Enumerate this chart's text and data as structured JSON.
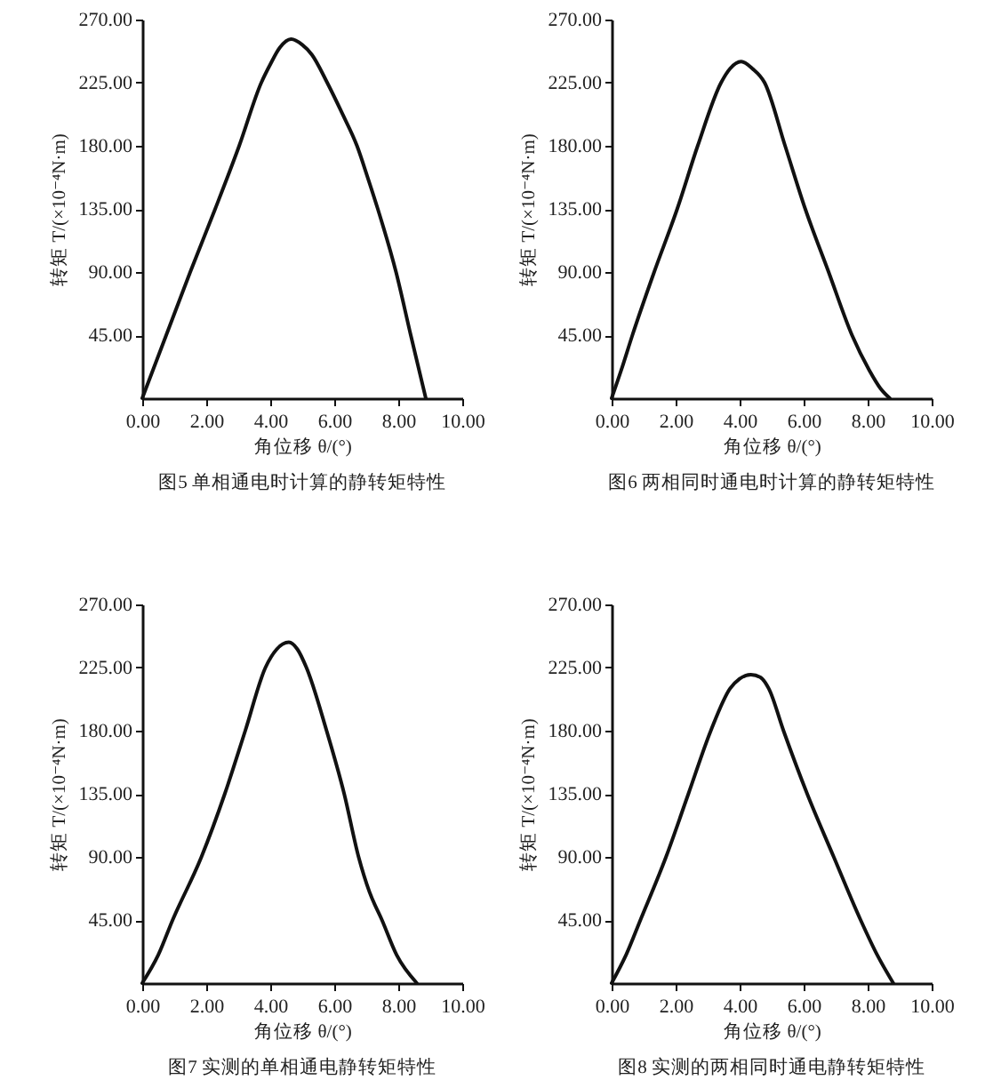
{
  "chart_data": [
    {
      "type": "line",
      "title": "图5 单相通电时计算的静转矩特性",
      "xlabel": "角位移 θ/(°)",
      "ylabel": "转矩 T/(×10⁻⁴N·m)",
      "color": "#111111",
      "x": [
        0,
        0.75,
        1.5,
        2.28,
        3.03,
        3.72,
        4.0,
        4.3,
        4.65,
        5.0,
        5.3,
        5.78,
        6.25,
        6.71,
        7.05,
        7.36,
        7.93,
        8.39,
        8.86
      ],
      "values": [
        0,
        45,
        90,
        135,
        180,
        225,
        238,
        250,
        256,
        252,
        245,
        225,
        203,
        180,
        157,
        135,
        90,
        45,
        0
      ],
      "xlim": [
        0,
        10
      ],
      "ylim": [
        0,
        270
      ],
      "xticks": [
        {
          "value": 0,
          "label": "0.00"
        },
        {
          "value": 2,
          "label": "2.00"
        },
        {
          "value": 4,
          "label": "4.00"
        },
        {
          "value": 6,
          "label": "6.00"
        },
        {
          "value": 8,
          "label": "8.00"
        },
        {
          "value": 10,
          "label": "10.00"
        }
      ],
      "yticks": [
        {
          "value": 45,
          "label": "45.00"
        },
        {
          "value": 90,
          "label": "90.00"
        },
        {
          "value": 135,
          "label": "135.00"
        },
        {
          "value": 180,
          "label": "180.00"
        },
        {
          "value": 225,
          "label": "225.00"
        },
        {
          "value": 270,
          "label": "270.00"
        }
      ]
    },
    {
      "type": "line",
      "title": "图6 两相同时通电时计算的静转矩特性",
      "xlabel": "角位移 θ/(°)",
      "ylabel": "转矩 T/(×10⁻⁴N·m)",
      "color": "#111111",
      "x": [
        0,
        0.3,
        0.65,
        1.33,
        2.05,
        2.69,
        3.42,
        3.7,
        4.05,
        4.4,
        4.78,
        5.42,
        6.05,
        6.78,
        7.51,
        8.05,
        8.4,
        8.69
      ],
      "values": [
        0,
        20,
        45,
        90,
        135,
        180,
        225,
        235,
        240,
        235,
        225,
        180,
        135,
        90,
        45,
        20,
        7,
        0
      ],
      "xlim": [
        0,
        10
      ],
      "ylim": [
        0,
        270
      ],
      "xticks": [
        {
          "value": 0,
          "label": "0.00"
        },
        {
          "value": 2,
          "label": "2.00"
        },
        {
          "value": 4,
          "label": "4.00"
        },
        {
          "value": 6,
          "label": "6.00"
        },
        {
          "value": 8,
          "label": "8.00"
        },
        {
          "value": 10,
          "label": "10.00"
        }
      ],
      "yticks": [
        {
          "value": 45,
          "label": "45.00"
        },
        {
          "value": 90,
          "label": "90.00"
        },
        {
          "value": 135,
          "label": "135.00"
        },
        {
          "value": 180,
          "label": "180.00"
        },
        {
          "value": 225,
          "label": "225.00"
        },
        {
          "value": 270,
          "label": "270.00"
        }
      ]
    },
    {
      "type": "line",
      "title": "图7 实测的单相通电静转矩特性",
      "xlabel": "角位移 θ/(°)",
      "ylabel": "转矩 T/(×10⁻⁴N·m)",
      "color": "#111111",
      "x": [
        0,
        0.5,
        0.95,
        1.85,
        2.58,
        3.22,
        3.85,
        4.2,
        4.58,
        4.85,
        5.13,
        5.76,
        6.31,
        6.76,
        7.1,
        7.49,
        7.95,
        8.58
      ],
      "values": [
        0,
        20,
        45,
        90,
        135,
        180,
        225,
        238,
        243,
        238,
        225,
        180,
        135,
        90,
        65,
        45,
        20,
        0
      ],
      "xlim": [
        0,
        10
      ],
      "ylim": [
        0,
        270
      ],
      "xticks": [
        {
          "value": 0,
          "label": "0.00"
        },
        {
          "value": 2,
          "label": "2.00"
        },
        {
          "value": 4,
          "label": "4.00"
        },
        {
          "value": 6,
          "label": "6.00"
        },
        {
          "value": 8,
          "label": "8.00"
        },
        {
          "value": 10,
          "label": "10.00"
        }
      ],
      "yticks": [
        {
          "value": 45,
          "label": "45.00"
        },
        {
          "value": 90,
          "label": "90.00"
        },
        {
          "value": 135,
          "label": "135.00"
        },
        {
          "value": 180,
          "label": "180.00"
        },
        {
          "value": 225,
          "label": "225.00"
        },
        {
          "value": 270,
          "label": "270.00"
        }
      ]
    },
    {
      "type": "line",
      "title": "图8 实测的两相同时通电静转矩特性",
      "xlabel": "角位移 θ/(°)",
      "ylabel": "转矩 T/(×10⁻⁴N·m)",
      "color": "#111111",
      "x": [
        0,
        0.45,
        0.9,
        1.7,
        2.4,
        3.1,
        3.7,
        4.0,
        4.35,
        4.65,
        4.91,
        5.37,
        6.11,
        6.94,
        7.78,
        8.3,
        8.8
      ],
      "values": [
        0,
        20,
        45,
        90,
        135,
        180,
        210,
        217,
        220,
        218,
        210,
        180,
        135,
        90,
        45,
        20,
        0
      ],
      "xlim": [
        0,
        10
      ],
      "ylim": [
        0,
        270
      ],
      "xticks": [
        {
          "value": 0,
          "label": "0.00"
        },
        {
          "value": 2,
          "label": "2.00"
        },
        {
          "value": 4,
          "label": "4.00"
        },
        {
          "value": 6,
          "label": "6.00"
        },
        {
          "value": 8,
          "label": "8.00"
        },
        {
          "value": 10,
          "label": "10.00"
        }
      ],
      "yticks": [
        {
          "value": 45,
          "label": "45.00"
        },
        {
          "value": 90,
          "label": "90.00"
        },
        {
          "value": 135,
          "label": "135.00"
        },
        {
          "value": 180,
          "label": "180.00"
        },
        {
          "value": 225,
          "label": "225.00"
        },
        {
          "value": 270,
          "label": "270.00"
        }
      ]
    }
  ]
}
